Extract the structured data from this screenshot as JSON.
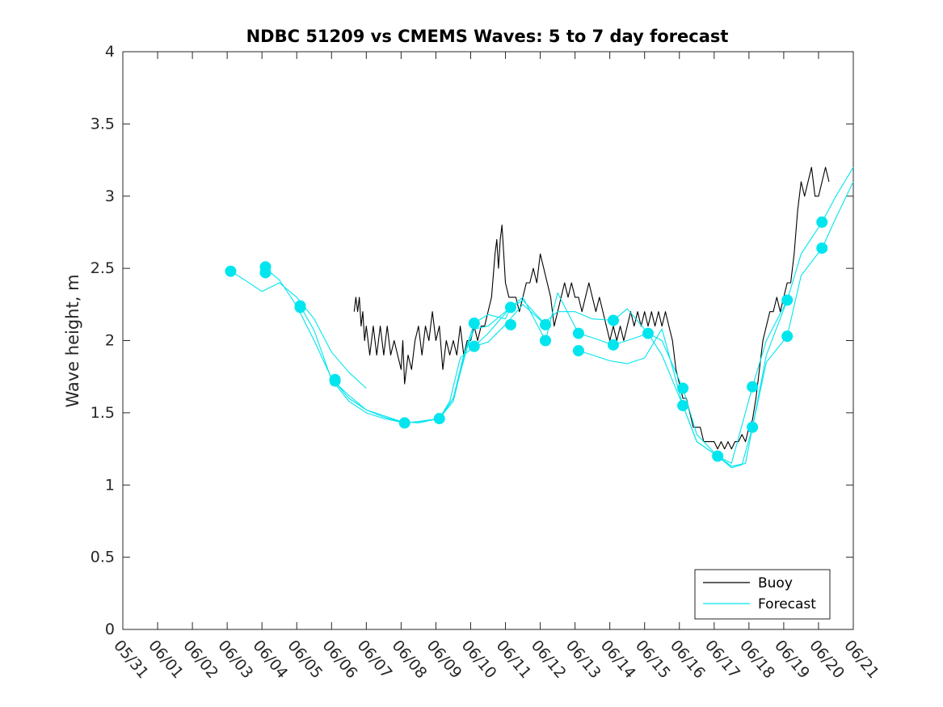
{
  "chart_data": {
    "type": "line",
    "title": "NDBC 51209 vs CMEMS Waves: 5 to 7 day forecast",
    "xlabel": "",
    "ylabel": "Wave height, m",
    "xlim": [
      0,
      21
    ],
    "ylim": [
      0,
      4
    ],
    "x_unit": "days since 05/31",
    "x_ticks": [
      "05/31",
      "06/01",
      "06/02",
      "06/03",
      "06/04",
      "06/05",
      "06/06",
      "06/07",
      "06/08",
      "06/09",
      "06/10",
      "06/11",
      "06/12",
      "06/13",
      "06/14",
      "06/15",
      "06/16",
      "06/17",
      "06/18",
      "06/19",
      "06/20",
      "06/21"
    ],
    "y_ticks": [
      "0",
      "0.5",
      "1",
      "1.5",
      "2",
      "2.5",
      "3",
      "3.5",
      "4"
    ],
    "grid": false,
    "legend": {
      "placement": "bottom-right",
      "entries": [
        {
          "label": "Buoy",
          "color": "#000000"
        },
        {
          "label": "Forecast",
          "color": "#00e5ee"
        }
      ]
    },
    "series": [
      {
        "name": "Buoy",
        "color": "#000000",
        "points": [
          [
            6.65,
            2.2
          ],
          [
            6.7,
            2.3
          ],
          [
            6.75,
            2.2
          ],
          [
            6.8,
            2.3
          ],
          [
            6.85,
            2.1
          ],
          [
            6.9,
            2.2
          ],
          [
            6.95,
            2.0
          ],
          [
            7.0,
            2.1
          ],
          [
            7.1,
            1.9
          ],
          [
            7.2,
            2.1
          ],
          [
            7.3,
            1.9
          ],
          [
            7.4,
            2.1
          ],
          [
            7.5,
            1.9
          ],
          [
            7.6,
            2.1
          ],
          [
            7.7,
            1.9
          ],
          [
            7.8,
            2.0
          ],
          [
            7.9,
            1.9
          ],
          [
            8.0,
            1.8
          ],
          [
            8.05,
            2.0
          ],
          [
            8.1,
            1.7
          ],
          [
            8.2,
            1.9
          ],
          [
            8.3,
            1.8
          ],
          [
            8.4,
            2.0
          ],
          [
            8.5,
            2.1
          ],
          [
            8.6,
            1.9
          ],
          [
            8.7,
            2.1
          ],
          [
            8.8,
            2.0
          ],
          [
            8.9,
            2.2
          ],
          [
            9.0,
            2.0
          ],
          [
            9.1,
            2.1
          ],
          [
            9.2,
            1.8
          ],
          [
            9.3,
            2.0
          ],
          [
            9.4,
            1.9
          ],
          [
            9.5,
            2.0
          ],
          [
            9.6,
            1.9
          ],
          [
            9.7,
            2.1
          ],
          [
            9.8,
            1.9
          ],
          [
            9.9,
            2.0
          ],
          [
            10.0,
            2.0
          ],
          [
            10.1,
            2.1
          ],
          [
            10.2,
            2.0
          ],
          [
            10.3,
            2.1
          ],
          [
            10.4,
            2.1
          ],
          [
            10.5,
            2.2
          ],
          [
            10.6,
            2.3
          ],
          [
            10.7,
            2.6
          ],
          [
            10.75,
            2.7
          ],
          [
            10.8,
            2.5
          ],
          [
            10.85,
            2.7
          ],
          [
            10.9,
            2.8
          ],
          [
            10.95,
            2.6
          ],
          [
            11.0,
            2.4
          ],
          [
            11.1,
            2.3
          ],
          [
            11.2,
            2.3
          ],
          [
            11.3,
            2.3
          ],
          [
            11.4,
            2.2
          ],
          [
            11.5,
            2.3
          ],
          [
            11.6,
            2.4
          ],
          [
            11.7,
            2.4
          ],
          [
            11.8,
            2.5
          ],
          [
            11.9,
            2.4
          ],
          [
            12.0,
            2.6
          ],
          [
            12.1,
            2.5
          ],
          [
            12.2,
            2.4
          ],
          [
            12.3,
            2.3
          ],
          [
            12.4,
            2.1
          ],
          [
            12.5,
            2.2
          ],
          [
            12.6,
            2.3
          ],
          [
            12.7,
            2.4
          ],
          [
            12.8,
            2.3
          ],
          [
            12.9,
            2.4
          ],
          [
            13.0,
            2.3
          ],
          [
            13.1,
            2.3
          ],
          [
            13.2,
            2.2
          ],
          [
            13.3,
            2.3
          ],
          [
            13.4,
            2.4
          ],
          [
            13.5,
            2.3
          ],
          [
            13.6,
            2.2
          ],
          [
            13.7,
            2.3
          ],
          [
            13.8,
            2.2
          ],
          [
            13.9,
            2.1
          ],
          [
            14.0,
            2.0
          ],
          [
            14.1,
            2.1
          ],
          [
            14.2,
            2.0
          ],
          [
            14.3,
            2.1
          ],
          [
            14.4,
            2.0
          ],
          [
            14.5,
            2.1
          ],
          [
            14.6,
            2.2
          ],
          [
            14.7,
            2.1
          ],
          [
            14.8,
            2.2
          ],
          [
            14.9,
            2.1
          ],
          [
            15.0,
            2.2
          ],
          [
            15.1,
            2.1
          ],
          [
            15.2,
            2.2
          ],
          [
            15.3,
            2.1
          ],
          [
            15.4,
            2.2
          ],
          [
            15.5,
            2.1
          ],
          [
            15.6,
            2.2
          ],
          [
            15.7,
            2.1
          ],
          [
            15.8,
            2.0
          ],
          [
            15.9,
            1.8
          ],
          [
            16.0,
            1.7
          ],
          [
            16.1,
            1.6
          ],
          [
            16.2,
            1.6
          ],
          [
            16.3,
            1.5
          ],
          [
            16.4,
            1.4
          ],
          [
            16.5,
            1.4
          ],
          [
            16.6,
            1.4
          ],
          [
            16.7,
            1.3
          ],
          [
            16.8,
            1.3
          ],
          [
            16.9,
            1.3
          ],
          [
            17.0,
            1.3
          ],
          [
            17.1,
            1.25
          ],
          [
            17.2,
            1.3
          ],
          [
            17.3,
            1.25
          ],
          [
            17.4,
            1.3
          ],
          [
            17.5,
            1.25
          ],
          [
            17.6,
            1.3
          ],
          [
            17.7,
            1.3
          ],
          [
            17.8,
            1.35
          ],
          [
            17.9,
            1.3
          ],
          [
            18.0,
            1.4
          ],
          [
            18.1,
            1.45
          ],
          [
            18.2,
            1.6
          ],
          [
            18.3,
            1.8
          ],
          [
            18.4,
            2.0
          ],
          [
            18.5,
            2.1
          ],
          [
            18.6,
            2.2
          ],
          [
            18.7,
            2.2
          ],
          [
            18.8,
            2.3
          ],
          [
            18.9,
            2.2
          ],
          [
            19.0,
            2.3
          ],
          [
            19.1,
            2.4
          ],
          [
            19.2,
            2.4
          ],
          [
            19.3,
            2.6
          ],
          [
            19.4,
            2.9
          ],
          [
            19.5,
            3.1
          ],
          [
            19.6,
            3.0
          ],
          [
            19.7,
            3.1
          ],
          [
            19.8,
            3.2
          ],
          [
            19.9,
            3.0
          ],
          [
            20.0,
            3.0
          ],
          [
            20.1,
            3.1
          ],
          [
            20.2,
            3.2
          ],
          [
            20.3,
            3.1
          ]
        ]
      },
      {
        "name": "Forecast",
        "color": "#00e5ee",
        "points": [
          [
            3.1,
            2.48
          ],
          [
            3.5,
            2.42
          ],
          [
            4.0,
            2.34
          ],
          [
            4.5,
            2.4
          ],
          [
            5.0,
            2.3
          ],
          [
            5.5,
            2.15
          ],
          [
            6.0,
            1.92
          ],
          [
            6.5,
            1.78
          ],
          [
            7.0,
            1.67
          ]
        ]
      },
      {
        "name": "Forecast",
        "color": "#00e5ee",
        "points": [
          [
            4.1,
            2.5
          ],
          [
            4.5,
            2.42
          ],
          [
            5.0,
            2.24
          ],
          [
            5.5,
            2.0
          ],
          [
            6.0,
            1.74
          ],
          [
            6.5,
            1.6
          ],
          [
            7.0,
            1.52
          ],
          [
            7.5,
            1.48
          ],
          [
            8.0,
            1.44
          ],
          [
            8.5,
            1.43
          ],
          [
            9.1,
            1.46
          ],
          [
            9.5,
            1.6
          ],
          [
            9.8,
            1.9
          ],
          [
            10.1,
            2.12
          ]
        ]
      },
      {
        "name": "Forecast",
        "color": "#00e5ee",
        "points": [
          [
            5.1,
            2.24
          ],
          [
            5.5,
            2.07
          ],
          [
            6.0,
            1.73
          ],
          [
            6.5,
            1.58
          ],
          [
            7.0,
            1.5
          ],
          [
            7.5,
            1.46
          ],
          [
            8.1,
            1.43
          ],
          [
            8.5,
            1.44
          ],
          [
            9.1,
            1.46
          ],
          [
            9.5,
            1.58
          ],
          [
            9.8,
            1.88
          ],
          [
            10.1,
            2.12
          ],
          [
            10.5,
            2.18
          ],
          [
            11.0,
            2.15
          ],
          [
            11.15,
            2.23
          ]
        ]
      },
      {
        "name": "Forecast",
        "color": "#00e5ee",
        "points": [
          [
            6.1,
            1.71
          ],
          [
            6.5,
            1.62
          ],
          [
            7.0,
            1.52
          ],
          [
            7.5,
            1.47
          ],
          [
            8.1,
            1.43
          ],
          [
            8.6,
            1.44
          ],
          [
            9.1,
            1.46
          ],
          [
            9.5,
            1.6
          ],
          [
            9.9,
            1.95
          ],
          [
            10.1,
            2.08
          ],
          [
            10.5,
            2.1
          ],
          [
            11.0,
            2.2
          ],
          [
            11.5,
            2.28
          ],
          [
            12.0,
            2.15
          ],
          [
            12.15,
            2.11
          ]
        ]
      },
      {
        "name": "Forecast",
        "color": "#00e5ee",
        "points": [
          [
            9.1,
            1.46
          ],
          [
            9.4,
            1.58
          ],
          [
            9.7,
            1.88
          ],
          [
            10.1,
            1.96
          ],
          [
            10.5,
            1.99
          ],
          [
            11.0,
            2.11
          ],
          [
            11.5,
            2.25
          ],
          [
            12.1,
            2.12
          ],
          [
            12.5,
            2.2
          ],
          [
            13.0,
            2.2
          ],
          [
            13.5,
            2.15
          ],
          [
            14.1,
            2.14
          ],
          [
            14.5,
            2.22
          ],
          [
            15.1,
            2.05
          ]
        ]
      },
      {
        "name": "Forecast",
        "color": "#00e5ee",
        "points": [
          [
            10.1,
            1.96
          ],
          [
            10.5,
            2.05
          ],
          [
            11.15,
            2.23
          ],
          [
            11.5,
            2.3
          ],
          [
            12.15,
            2.0
          ],
          [
            12.5,
            2.33
          ],
          [
            13.1,
            2.05
          ],
          [
            13.5,
            2.02
          ],
          [
            14.1,
            1.97
          ],
          [
            14.5,
            2.0
          ],
          [
            15.1,
            2.05
          ],
          [
            15.5,
            2.0
          ],
          [
            16.1,
            1.67
          ]
        ]
      },
      {
        "name": "Forecast",
        "color": "#00e5ee",
        "points": [
          [
            13.1,
            1.93
          ],
          [
            13.5,
            1.9
          ],
          [
            14.0,
            1.86
          ],
          [
            14.5,
            1.84
          ],
          [
            15.0,
            1.88
          ],
          [
            15.5,
            2.08
          ],
          [
            16.1,
            1.55
          ],
          [
            16.5,
            1.3
          ],
          [
            17.1,
            1.2
          ],
          [
            17.5,
            1.13
          ],
          [
            17.9,
            1.15
          ],
          [
            18.1,
            1.4
          ],
          [
            18.5,
            1.9
          ],
          [
            19.1,
            2.28
          ]
        ]
      },
      {
        "name": "Forecast",
        "color": "#00e5ee",
        "points": [
          [
            15.1,
            2.05
          ],
          [
            15.5,
            1.9
          ],
          [
            16.1,
            1.55
          ],
          [
            16.5,
            1.3
          ],
          [
            17.1,
            1.2
          ],
          [
            17.5,
            1.12
          ],
          [
            17.8,
            1.14
          ],
          [
            18.1,
            1.4
          ],
          [
            18.5,
            1.85
          ],
          [
            19.1,
            2.03
          ],
          [
            19.5,
            2.45
          ],
          [
            20.1,
            2.64
          ],
          [
            20.5,
            2.85
          ],
          [
            21.0,
            3.1
          ]
        ]
      },
      {
        "name": "Forecast",
        "color": "#00e5ee",
        "points": [
          [
            16.1,
            1.67
          ],
          [
            16.5,
            1.35
          ],
          [
            17.1,
            1.2
          ],
          [
            17.5,
            1.15
          ],
          [
            18.1,
            1.68
          ],
          [
            18.5,
            2.0
          ],
          [
            19.1,
            2.28
          ],
          [
            19.5,
            2.6
          ],
          [
            20.1,
            2.82
          ],
          [
            20.5,
            3.0
          ],
          [
            21.0,
            3.2
          ]
        ]
      }
    ],
    "markers": [
      [
        3.1,
        2.48
      ],
      [
        4.1,
        2.51
      ],
      [
        4.1,
        2.47
      ],
      [
        5.1,
        2.23
      ],
      [
        5.1,
        2.24
      ],
      [
        6.1,
        1.72
      ],
      [
        6.1,
        1.73
      ],
      [
        8.1,
        1.43
      ],
      [
        9.1,
        1.46
      ],
      [
        10.1,
        2.12
      ],
      [
        10.1,
        1.96
      ],
      [
        11.15,
        2.23
      ],
      [
        11.15,
        2.11
      ],
      [
        12.15,
        2.11
      ],
      [
        12.15,
        2.0
      ],
      [
        13.1,
        2.05
      ],
      [
        13.1,
        1.93
      ],
      [
        14.1,
        2.14
      ],
      [
        14.1,
        1.97
      ],
      [
        15.1,
        2.05
      ],
      [
        16.1,
        1.67
      ],
      [
        16.1,
        1.55
      ],
      [
        17.1,
        1.2
      ],
      [
        18.1,
        1.68
      ],
      [
        18.1,
        1.4
      ],
      [
        19.1,
        2.28
      ],
      [
        19.1,
        2.03
      ],
      [
        20.1,
        2.82
      ],
      [
        20.1,
        2.64
      ]
    ]
  }
}
